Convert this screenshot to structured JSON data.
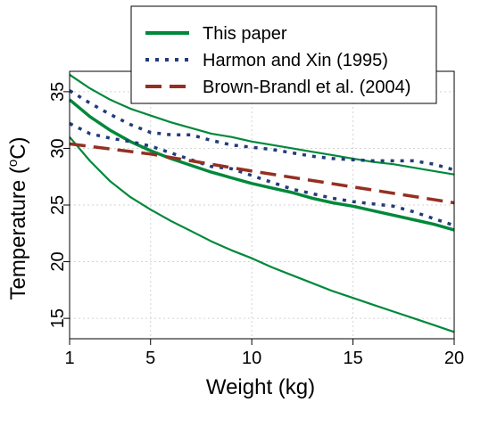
{
  "chart_data": {
    "type": "line",
    "title": "",
    "xlabel": "Weight (kg)",
    "ylabel": "Temperature (oC)",
    "ylabel_parts": {
      "main": "Temperature (",
      "sup": "o",
      "after": "C)"
    },
    "xlim": [
      1,
      20
    ],
    "ylim": [
      13.2,
      36.8
    ],
    "xticks": [
      1,
      5,
      10,
      15,
      20
    ],
    "yticks": [
      15,
      20,
      25,
      30,
      35
    ],
    "grid": true,
    "legend_position": "top-right",
    "series": [
      {
        "name": "This paper",
        "color": "#00883A",
        "style": "solid",
        "lines": [
          {
            "role": "estimate",
            "width": 3.5,
            "x": [
              1,
              2,
              3,
              4,
              5,
              6,
              7,
              8,
              9,
              10,
              11,
              12,
              13,
              14,
              15,
              16,
              17,
              18,
              19,
              20
            ],
            "y": [
              34.3,
              32.8,
              31.6,
              30.6,
              29.8,
              29.1,
              28.5,
              27.9,
              27.4,
              26.9,
              26.5,
              26.1,
              25.6,
              25.2,
              24.9,
              24.5,
              24.1,
              23.7,
              23.3,
              22.8
            ]
          },
          {
            "role": "upper",
            "width": 2.2,
            "x": [
              1,
              2,
              3,
              4,
              5,
              6,
              7,
              8,
              9,
              10,
              11,
              12,
              13,
              14,
              15,
              16,
              17,
              18,
              19,
              20
            ],
            "y": [
              36.5,
              35.3,
              34.3,
              33.5,
              32.9,
              32.3,
              31.8,
              31.3,
              31.0,
              30.6,
              30.3,
              30.0,
              29.7,
              29.4,
              29.1,
              28.8,
              28.6,
              28.3,
              28.0,
              27.7
            ]
          },
          {
            "role": "lower",
            "width": 2.2,
            "x": [
              1,
              2,
              3,
              4,
              5,
              6,
              7,
              8,
              9,
              10,
              11,
              12,
              13,
              14,
              15,
              16,
              17,
              18,
              19,
              20
            ],
            "y": [
              31.0,
              28.9,
              27.1,
              25.7,
              24.6,
              23.6,
              22.7,
              21.8,
              21.0,
              20.3,
              19.5,
              18.8,
              18.1,
              17.4,
              16.8,
              16.2,
              15.6,
              15.0,
              14.4,
              13.8
            ]
          }
        ]
      },
      {
        "name": "Harmon and Xin (1995)",
        "color": "#223B7A",
        "style": "dotted",
        "lines": [
          {
            "role": "upper",
            "width": 3.5,
            "x": [
              1,
              2,
              3,
              4,
              5,
              6,
              7,
              8,
              9,
              10,
              11,
              12,
              13,
              14,
              15,
              16,
              17,
              18,
              19,
              20
            ],
            "y": [
              35.1,
              34.0,
              33.0,
              32.1,
              31.4,
              31.2,
              31.2,
              30.7,
              30.3,
              30.1,
              29.9,
              29.6,
              29.3,
              29.1,
              29.0,
              28.9,
              28.9,
              28.9,
              28.6,
              28.1
            ]
          },
          {
            "role": "lower",
            "width": 3.5,
            "x": [
              1,
              2,
              3,
              4,
              5,
              6,
              7,
              8,
              9,
              10,
              11,
              12,
              13,
              14,
              15,
              16,
              17,
              18,
              19,
              20
            ],
            "y": [
              32.2,
              31.3,
              30.9,
              30.6,
              30.2,
              29.6,
              29.0,
              28.4,
              28.2,
              27.6,
              27.0,
              26.4,
              26.0,
              25.6,
              25.3,
              25.1,
              24.9,
              24.4,
              23.8,
              23.2
            ]
          }
        ]
      },
      {
        "name": "Brown-Brandl et al. (2004)",
        "color": "#943022",
        "style": "dashed",
        "lines": [
          {
            "role": "estimate",
            "width": 3.5,
            "x": [
              1,
              5,
              10,
              15,
              20
            ],
            "y": [
              30.4,
              29.5,
              28.0,
              26.6,
              25.2
            ]
          }
        ]
      }
    ]
  }
}
